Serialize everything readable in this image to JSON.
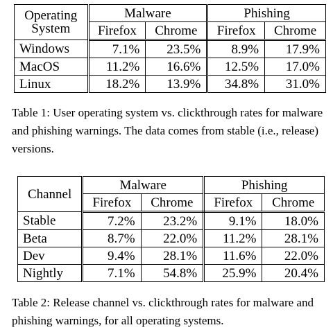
{
  "table1": {
    "corner": [
      "Operating",
      "System"
    ],
    "groups": [
      "Malware",
      "Phishing"
    ],
    "subheaders": [
      "Firefox",
      "Chrome",
      "Firefox",
      "Chrome"
    ],
    "rows": [
      {
        "label": "Windows",
        "values": [
          "7.1%",
          "23.5%",
          "8.9%",
          "17.9%"
        ]
      },
      {
        "label": "MacOS",
        "values": [
          "11.2%",
          "16.6%",
          "12.5%",
          "17.0%"
        ]
      },
      {
        "label": "Linux",
        "values": [
          "18.2%",
          "13.9%",
          "34.8%",
          "31.0%"
        ]
      }
    ],
    "caption": "Table 1: User operating system vs. clickthrough rates for malware and phishing warnings. The data comes from stable (i.e., release) versions."
  },
  "table2": {
    "corner": "Channel",
    "groups": [
      "Malware",
      "Phishing"
    ],
    "subheaders": [
      "Firefox",
      "Chrome",
      "Firefox",
      "Chrome"
    ],
    "rows": [
      {
        "label": "Stable",
        "values": [
          "7.2%",
          "23.2%",
          "9.1%",
          "18.0%"
        ]
      },
      {
        "label": "Beta",
        "values": [
          "8.7%",
          "22.0%",
          "11.2%",
          "28.1%"
        ]
      },
      {
        "label": "Dev",
        "values": [
          "9.4%",
          "28.1%",
          "11.6%",
          "22.0%"
        ]
      },
      {
        "label": "Nightly",
        "values": [
          "7.1%",
          "54.8%",
          "25.9%",
          "20.4%"
        ]
      }
    ],
    "caption": "Table 2: Release channel vs. clickthrough rates for malware and phishing warnings, for all operating systems."
  }
}
